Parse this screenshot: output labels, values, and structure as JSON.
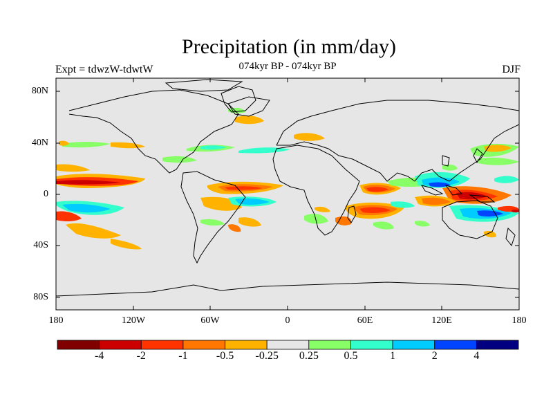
{
  "figure": {
    "title": "Precipitation (in mm/day)",
    "subtitle": "074kyr BP - 074kyr BP",
    "left_label": "Expt = tdwzW-tdwtW",
    "right_label": "DJF"
  },
  "axes": {
    "lat_labels": [
      "80N",
      "40N",
      "0",
      "40S",
      "80S"
    ],
    "lon_labels": [
      "180",
      "120W",
      "60W",
      "0",
      "60E",
      "120E",
      "180"
    ]
  },
  "colorbar": {
    "colors": [
      "#800000",
      "#cc0000",
      "#ff3300",
      "#ff7700",
      "#ffb300",
      "#e6e6e6",
      "#88ff66",
      "#33ffcc",
      "#00ccff",
      "#0044ff",
      "#000080"
    ],
    "labels": [
      "-4",
      "-2",
      "-1",
      "-0.5",
      "-0.25",
      "0.25",
      "0.5",
      "1",
      "2",
      "4"
    ]
  },
  "colors": {
    "background": "#e6e6e6",
    "coastline": "#000000"
  }
}
